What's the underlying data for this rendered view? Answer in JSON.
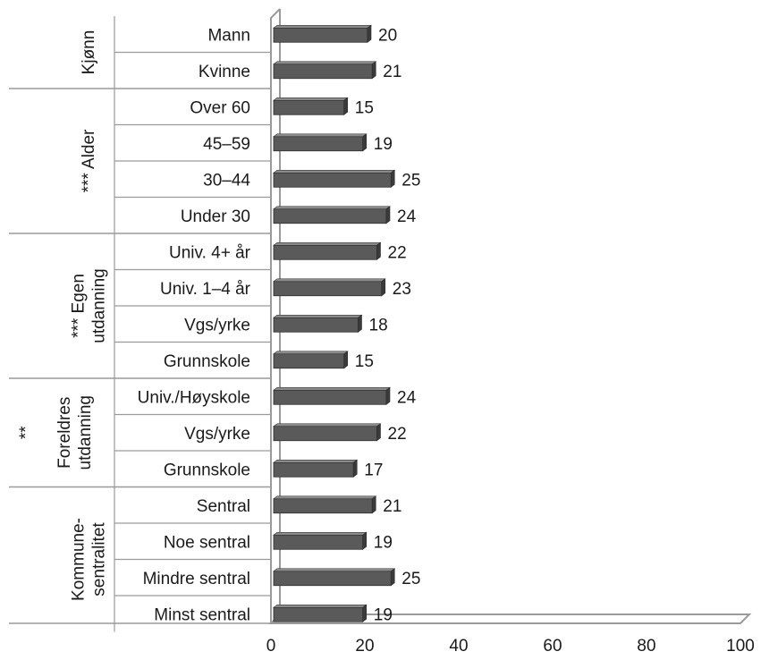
{
  "chart_data": {
    "type": "bar",
    "orientation": "horizontal",
    "title": "",
    "xlabel": "",
    "ylabel": "",
    "xlim": [
      0,
      100
    ],
    "x_ticks": [
      "0",
      "20",
      "40",
      "60",
      "80",
      "100"
    ],
    "grid": false,
    "legend": "none",
    "bar_color": "#5a5a5a",
    "groups": [
      {
        "label": "Kjønn",
        "items": [
          {
            "label": "Mann",
            "value": 20
          },
          {
            "label": "Kvinne",
            "value": 21
          }
        ]
      },
      {
        "label": "*** Alder",
        "items": [
          {
            "label": "Over 60",
            "value": 15
          },
          {
            "label": "45–59",
            "value": 19
          },
          {
            "label": "30–44",
            "value": 25
          },
          {
            "label": "Under 30",
            "value": 24
          }
        ]
      },
      {
        "label": "*** Egen utdanning",
        "items": [
          {
            "label": "Univ. 4+ år",
            "value": 22
          },
          {
            "label": "Univ. 1–4 år",
            "value": 23
          },
          {
            "label": "Vgs/yrke",
            "value": 18
          },
          {
            "label": "Grunnskole",
            "value": 15
          }
        ]
      },
      {
        "label": "** Foreldres utdanning",
        "items": [
          {
            "label": "Univ./Høyskole",
            "value": 24
          },
          {
            "label": "Vgs/yrke",
            "value": 22
          },
          {
            "label": "Grunnskole",
            "value": 17
          }
        ]
      },
      {
        "label": "Kommune-sentralitet",
        "items": [
          {
            "label": "Sentral",
            "value": 21
          },
          {
            "label": "Noe sentral",
            "value": 19
          },
          {
            "label": "Mindre sentral",
            "value": 25
          },
          {
            "label": "Minst sentral",
            "value": 19
          }
        ]
      }
    ]
  }
}
